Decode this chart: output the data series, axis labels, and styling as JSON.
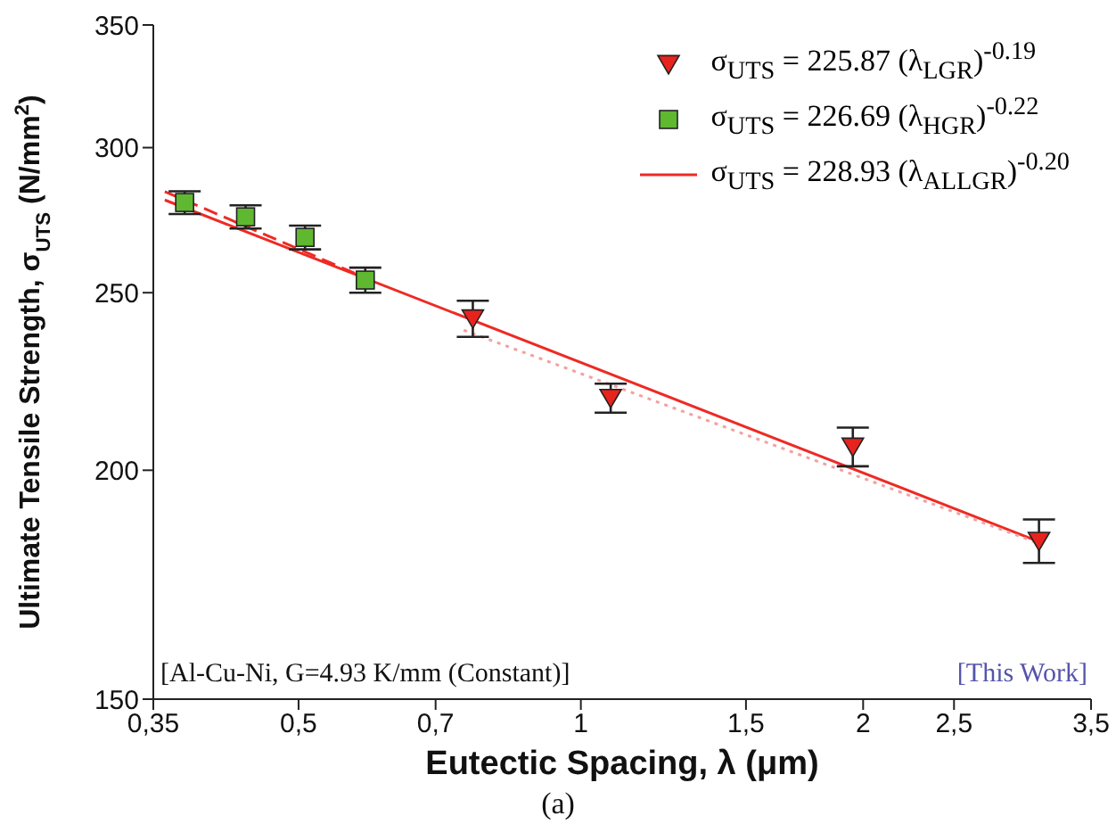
{
  "chart_data": {
    "type": "scatter",
    "xlabel": "Eutectic Spacing, λ (μm)",
    "ylabel": "Ultimate Tensile Strength, σ$_{UTS}$ (N/mm$^{2}$)",
    "log": "xy",
    "xlim": [
      0.35,
      3.5
    ],
    "xticks": [
      {
        "value": 0.35,
        "label": "0,35"
      },
      {
        "value": 0.5,
        "label": "0,5"
      },
      {
        "value": 0.7,
        "label": "0,7"
      },
      1,
      {
        "value": 1.5,
        "label": "1,5"
      },
      2,
      {
        "value": 2.5,
        "label": "2,5"
      },
      {
        "value": 3.5,
        "label": "3,5"
      }
    ],
    "ylim": [
      150,
      350
    ],
    "yticks": [
      150,
      200,
      250,
      300,
      350
    ],
    "legend": "top right",
    "annotations": [
      "[Al-Cu-Ni, G=4.93 K/mm (Constant)]",
      "[This Work]",
      "(a)"
    ],
    "series": [
      {
        "name": "σ$_{UTS}$ = 225.87 (λ$_{LGR}$)$^{-0.19}$",
        "color": "#e8231e",
        "marker": "triangle",
        "x": [
          0.767,
          1.076,
          1.95,
          3.08
        ],
        "values": [
          242,
          219,
          206,
          183
        ],
        "errors": [
          5.5,
          4,
          5,
          5
        ]
      },
      {
        "name": "σ$_{UTS}$ = 226.69 (λ$_{HGR}$)$^{-0.22}$",
        "color": "#5fb830",
        "marker": "square",
        "x": [
          0.378,
          0.439,
          0.508,
          0.589
        ],
        "values": [
          280,
          275,
          268,
          254
        ],
        "errors": [
          4,
          4,
          4,
          4
        ]
      },
      {
        "name": "σ$_{UTS}$ = 228.93 (λ$_{ALLGR}$)$^{-0.20}$",
        "type": "line",
        "color": "#ee2a24",
        "marker": "none",
        "line_style": "solid",
        "x": [
          0.36,
          3.1
        ],
        "values": [
          280.9,
          182.6
        ]
      },
      {
        "type": "line",
        "color": "#ee2a24",
        "marker": "none",
        "line_style": "dashed",
        "x": [
          0.36,
          0.6
        ],
        "values": [
          283.9,
          253.7
        ]
      },
      {
        "type": "line",
        "color": "#f4a0a0",
        "marker": "none",
        "line_style": "dotted",
        "x": [
          0.75,
          3.1
        ],
        "values": [
          238.5,
          182.2
        ]
      }
    ]
  }
}
